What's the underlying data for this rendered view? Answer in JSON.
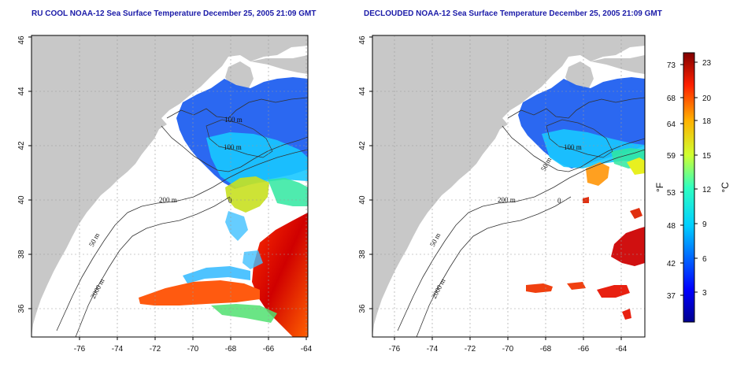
{
  "panels": [
    {
      "title": "RU COOL NOAA-12 Sea Surface Temperature December 25, 2005 21:09 GMT",
      "contour_labels": [
        "100 m",
        "100 m",
        "200 m",
        "50 m",
        "2000 m",
        "0"
      ]
    },
    {
      "title": "DECLOUDED NOAA-12 Sea Surface Temperature December 25, 2005 21:09 GMT",
      "contour_labels": [
        "100 m",
        "50 m",
        "200 m",
        "50 m",
        "2000 m",
        "0"
      ]
    }
  ],
  "axes": {
    "lon_ticks": [
      "-76",
      "-74",
      "-72",
      "-70",
      "-68",
      "-66",
      "-64"
    ],
    "lat_ticks": [
      "36",
      "38",
      "40",
      "42",
      "44",
      "46"
    ]
  },
  "colorbar": {
    "fahrenheit_unit": "°F",
    "celsius_unit": "°C",
    "fahrenheit_ticks": [
      "73",
      "68",
      "64",
      "59",
      "53",
      "48",
      "42",
      "37"
    ],
    "celsius_ticks": [
      "23",
      "20",
      "18",
      "15",
      "12",
      "9",
      "6",
      "3"
    ]
  },
  "colors": {
    "land": "#c8c8c8",
    "ocean": "#ffffff",
    "title": "#1a1aa8"
  }
}
